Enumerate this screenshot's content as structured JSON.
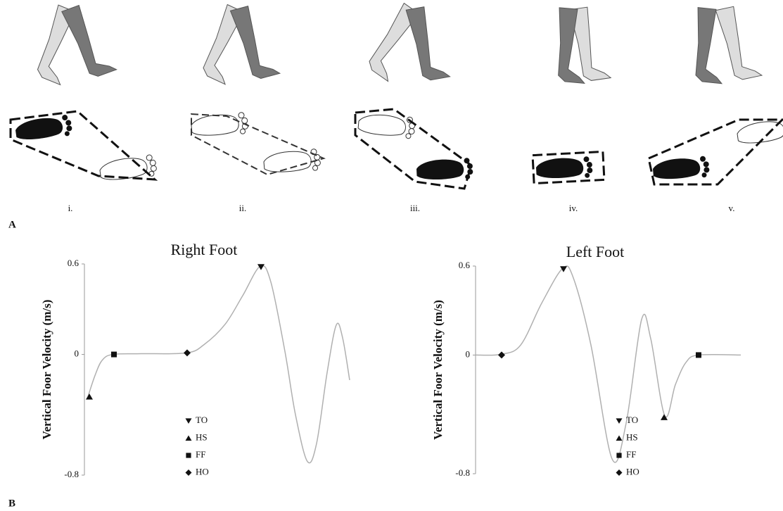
{
  "panel_labels": [
    "A",
    "B"
  ],
  "stages": [
    "i.",
    "ii.",
    "iii.",
    "iv.",
    "v."
  ],
  "chart_data": [
    {
      "type": "line",
      "title": "Right Foot",
      "y_label": "Vertical Foor Velocity (m/s)",
      "x": [
        5,
        15,
        25,
        40,
        80,
        145,
        170,
        200,
        225,
        250,
        265,
        285,
        300,
        317,
        330,
        345,
        358,
        367,
        377
      ],
      "values": [
        -0.28,
        -0.14,
        -0.04,
        0,
        0.005,
        0.01,
        0.065,
        0.2,
        0.39,
        0.585,
        0.48,
        0.02,
        -0.4,
        -0.71,
        -0.59,
        -0.12,
        0.195,
        0.11,
        -0.17
      ],
      "color": "#b0b0b0",
      "xlim": [
        0,
        380
      ],
      "ylim": [
        -0.8,
        0.6
      ],
      "yticks": [
        -0.8,
        0,
        0.6
      ],
      "events": [
        {
          "name": "TO",
          "marker": "triangle-down",
          "x": 251,
          "y": 0.58
        },
        {
          "name": "HS",
          "marker": "triangle-up",
          "x": 7,
          "y": -0.28
        },
        {
          "name": "FF",
          "marker": "square",
          "x": 42,
          "y": 0
        },
        {
          "name": "HO",
          "marker": "diamond",
          "x": 146,
          "y": 0.01
        }
      ]
    },
    {
      "type": "line",
      "title": "Left Foot",
      "y_label": "Vertical Foor Velocity (m/s)",
      "x": [
        0,
        36,
        64,
        94,
        124,
        139,
        164,
        194,
        214,
        236,
        249,
        269,
        284,
        299,
        317,
        377
      ],
      "values": [
        0,
        0.005,
        0.067,
        0.35,
        0.585,
        0.52,
        0.067,
        -0.7,
        -0.46,
        0.24,
        0.11,
        -0.41,
        -0.2,
        -0.05,
        0,
        0
      ],
      "color": "#b0b0b0",
      "xlim": [
        0,
        380
      ],
      "ylim": [
        -0.8,
        0.6
      ],
      "yticks": [
        -0.8,
        0,
        0.6
      ],
      "events": [
        {
          "name": "TO",
          "marker": "triangle-down",
          "x": 125,
          "y": 0.58
        },
        {
          "name": "HS",
          "marker": "triangle-up",
          "x": 268,
          "y": -0.42
        },
        {
          "name": "FF",
          "marker": "square",
          "x": 317,
          "y": 0
        },
        {
          "name": "HO",
          "marker": "diamond",
          "x": 37,
          "y": 0
        }
      ]
    }
  ]
}
